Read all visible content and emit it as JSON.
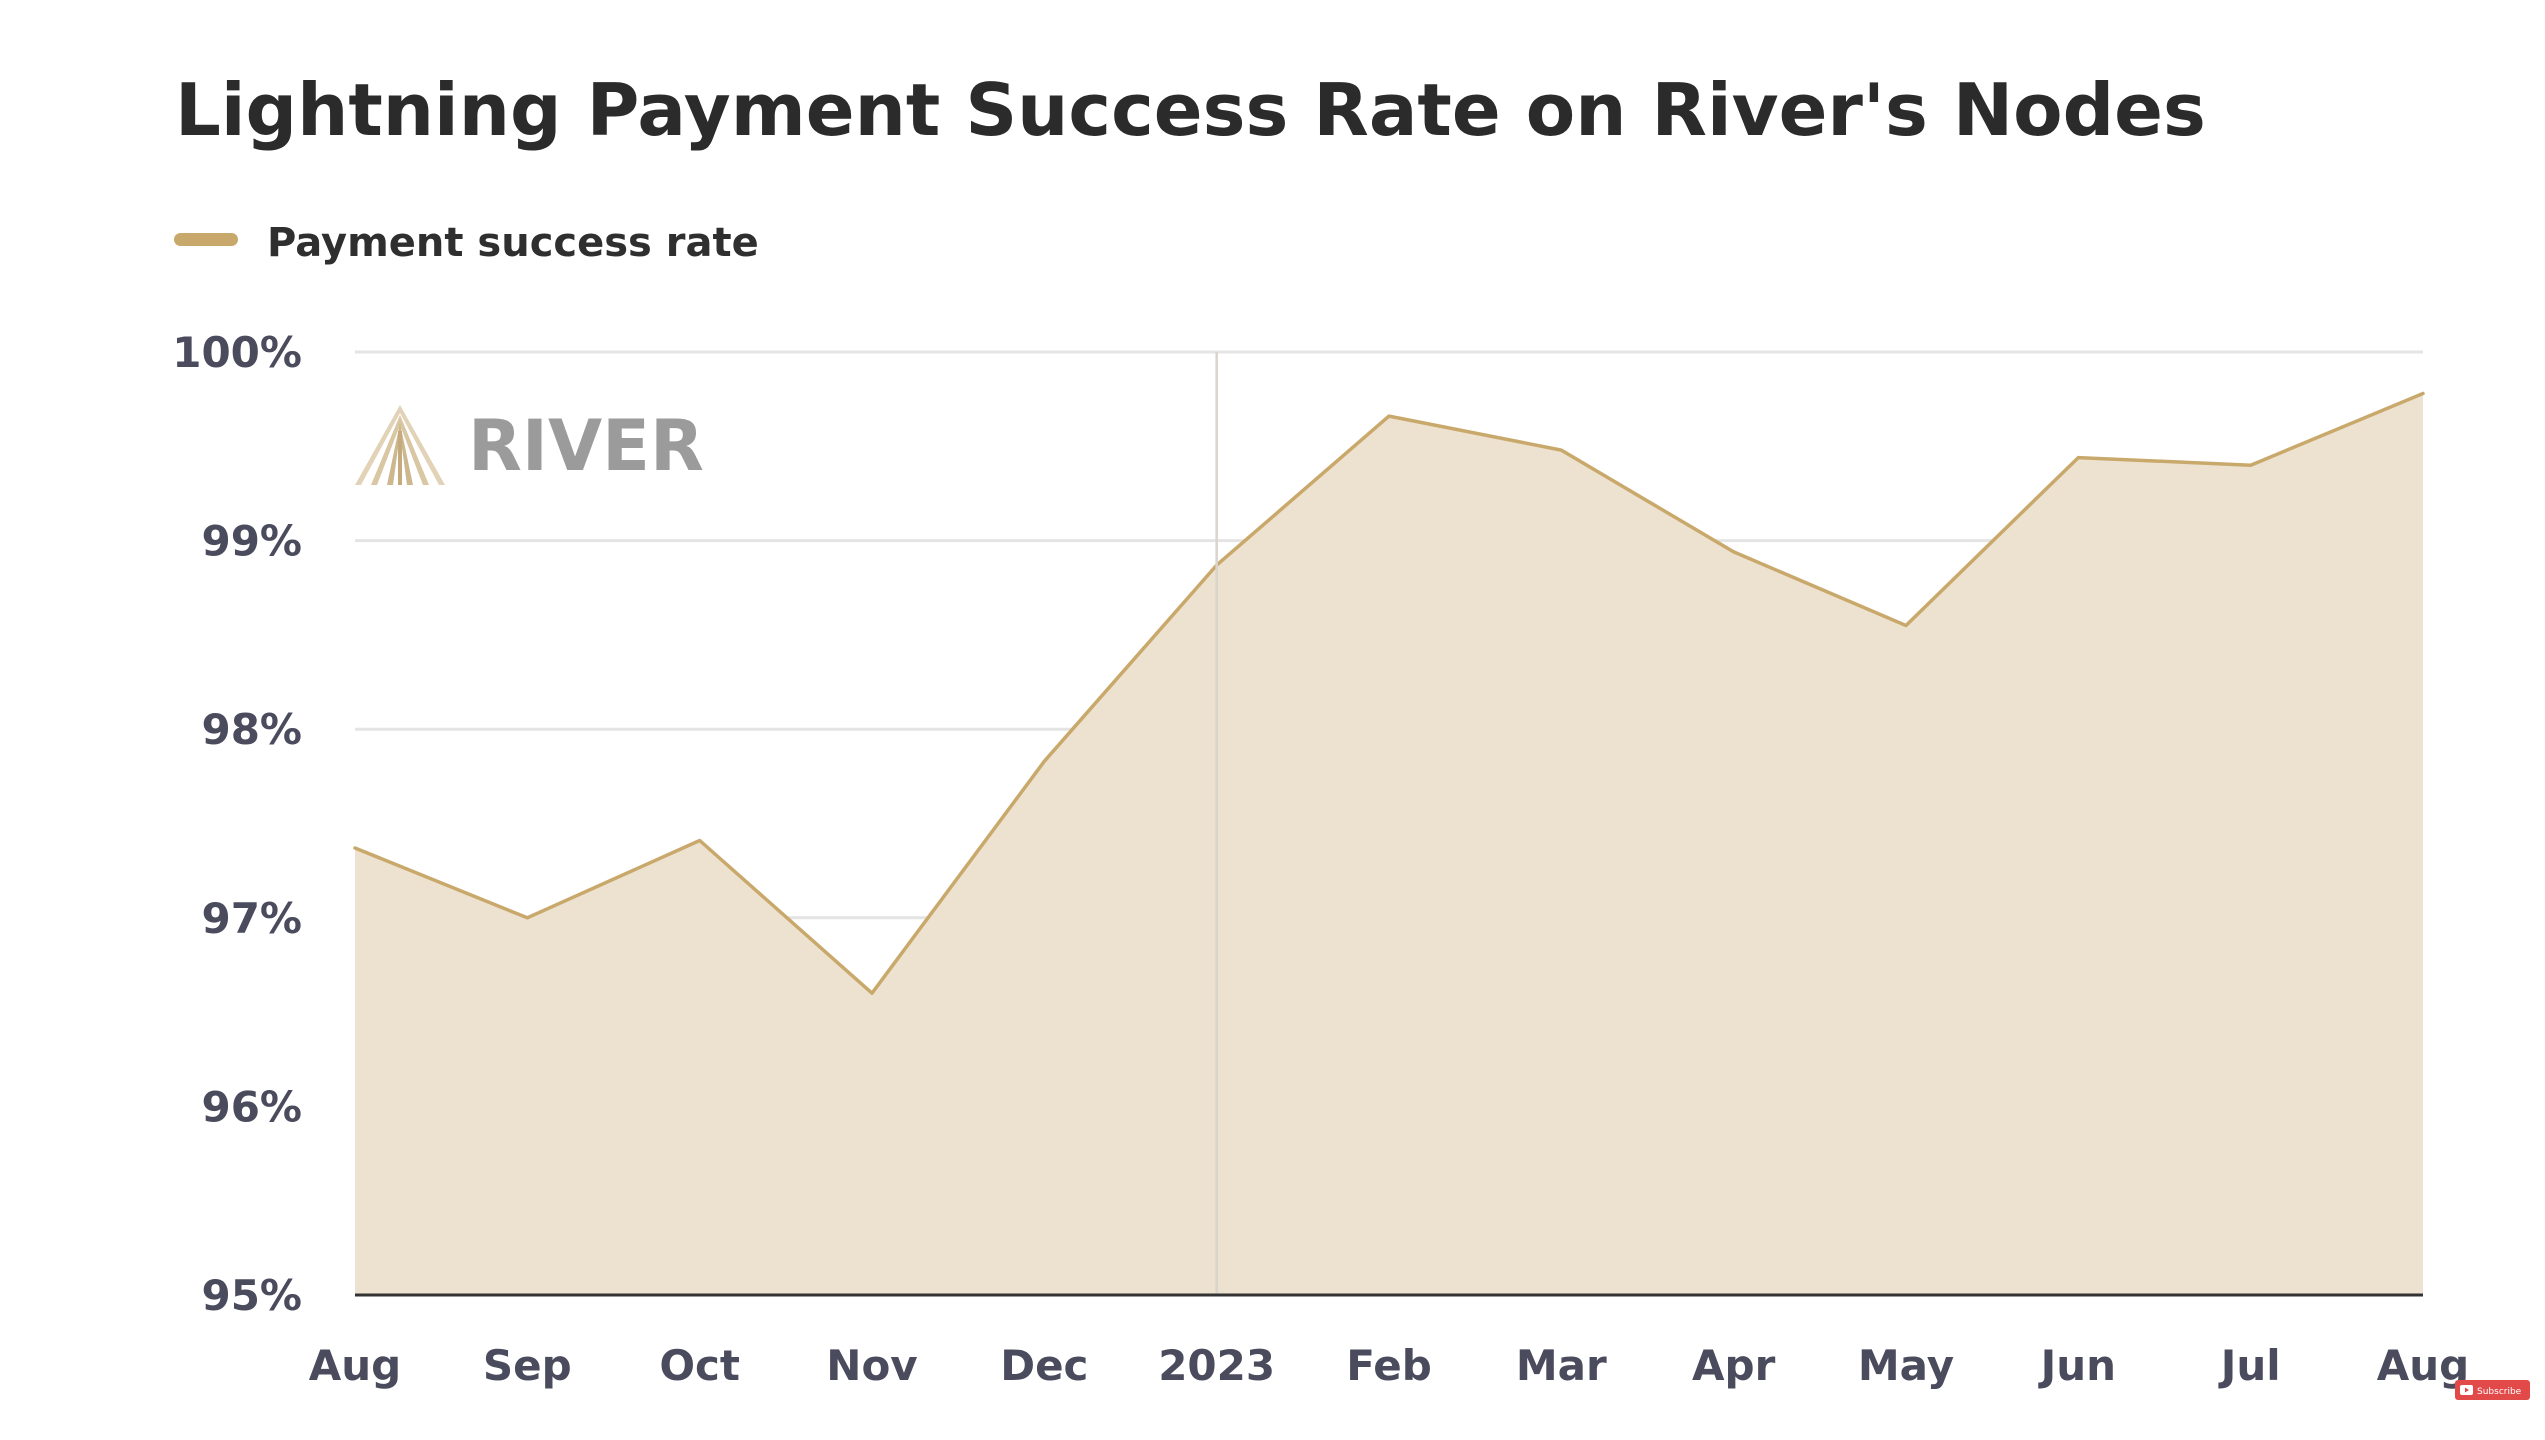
{
  "chart_data": {
    "type": "area",
    "title": "Lightning Payment Success Rate on River's Nodes",
    "legend": {
      "placement": "top-left",
      "entries": [
        "Payment success rate"
      ]
    },
    "x": [
      "Aug",
      "Sep",
      "Oct",
      "Nov",
      "Dec",
      "2023",
      "Feb",
      "Mar",
      "Apr",
      "May",
      "Jun",
      "Jul",
      "Aug"
    ],
    "series": [
      {
        "name": "Payment success rate",
        "values": [
          97.37,
          97.0,
          97.41,
          96.6,
          97.83,
          98.87,
          99.66,
          99.48,
          98.94,
          98.55,
          99.44,
          99.4,
          99.78
        ]
      }
    ],
    "ylim": [
      95,
      100
    ],
    "yticks": [
      95,
      96,
      97,
      98,
      99,
      100
    ],
    "ytick_labels": [
      "95%",
      "96%",
      "97%",
      "98%",
      "99%",
      "100%"
    ],
    "year_marker": "2023",
    "grid": true,
    "colors": {
      "line": "#c9a96b",
      "fill": "#ede1d0",
      "grid": "#e4e4e4",
      "axis": "#333333"
    }
  },
  "watermark": {
    "text": "RIVER",
    "icon": "river-logo-icon"
  },
  "badge": {
    "text": "Subscribe",
    "icon": "youtube-play-icon",
    "color": "#e24a4a"
  }
}
